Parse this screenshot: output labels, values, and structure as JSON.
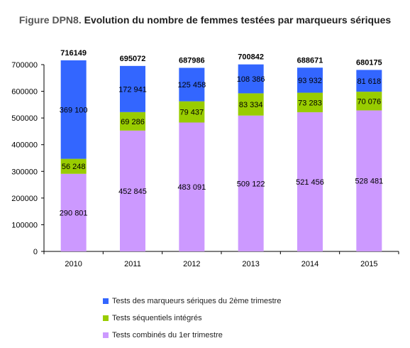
{
  "title": {
    "prefix": "Figure DPN8.",
    "text": "Evolution du nombre de femmes testées par marqueurs sériques"
  },
  "chart_data": {
    "type": "bar",
    "stacked": true,
    "categories": [
      "2010",
      "2011",
      "2012",
      "2013",
      "2014",
      "2015"
    ],
    "series": [
      {
        "name": "Tests combinés du 1er trimestre",
        "color": "#cc99ff",
        "values": [
          290801,
          452845,
          483091,
          509122,
          521456,
          528481
        ],
        "labels": [
          "290 801",
          "452 845",
          "483 091",
          "509 122",
          "521 456",
          "528 481"
        ]
      },
      {
        "name": "Tests séquentiels intégrés",
        "color": "#99cc00",
        "values": [
          56248,
          69286,
          79437,
          83334,
          73283,
          70076
        ],
        "labels": [
          "56 248",
          "69 286",
          "79 437",
          "83 334",
          "73 283",
          "70 076"
        ]
      },
      {
        "name": "Tests des marqueurs sériques du 2ème trimestre",
        "color": "#3366ff",
        "values": [
          369100,
          172941,
          125458,
          108386,
          93932,
          81618
        ],
        "labels": [
          "369 100",
          "172 941",
          "125 458",
          "108 386",
          "93 932",
          "81 618"
        ]
      }
    ],
    "totals": [
      "716149",
      "695072",
      "687986",
      "700842",
      "688671",
      "680175"
    ],
    "ylim": [
      0,
      700000
    ],
    "yticks": [
      0,
      100000,
      200000,
      300000,
      400000,
      500000,
      600000,
      700000
    ],
    "ytick_labels": [
      "0",
      "100000",
      "200000",
      "300000",
      "400000",
      "500000",
      "600000",
      "700000"
    ],
    "grid": false,
    "legend_position": "bottom"
  }
}
